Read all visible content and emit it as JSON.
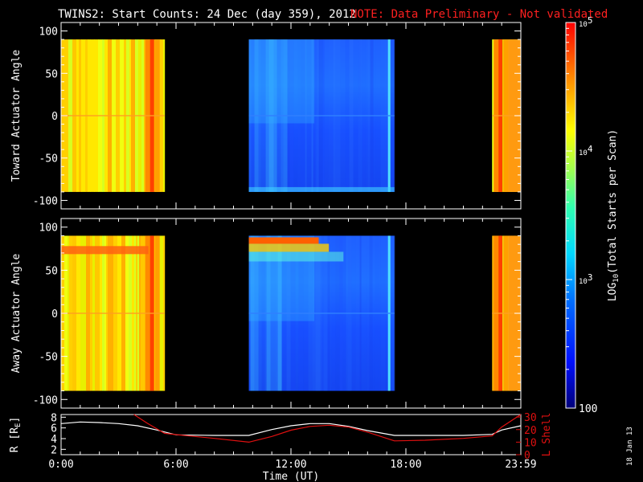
{
  "title": "TWINS2: Start Counts: 24 Dec (day 359), 2012",
  "note": "NOTE: Data Preliminary - Not validated",
  "date_stamp": "18 Jan 13",
  "colorbar": {
    "label_prefix": "LOG",
    "label_sub": "10",
    "label_suffix": "(Total Starts per Scan)",
    "tick_labels": [
      "10",
      "10",
      "10",
      "100"
    ],
    "tick_exponents": [
      "5",
      "4",
      "3",
      ""
    ],
    "range": [
      100,
      100000
    ],
    "scale": "log"
  },
  "colors": {
    "title": "#ffffff",
    "note": "#ff2020",
    "axis": "#ffffff",
    "lshell": "#e01010",
    "radius": "#ffffff"
  },
  "chart_data": [
    {
      "type": "heatmap",
      "ylabel": "Toward Actuator Angle",
      "ylim": [
        -110,
        110
      ],
      "yticks": [
        100,
        50,
        0,
        -50,
        -100
      ],
      "data_ylim": [
        -90,
        90
      ],
      "xlim": [
        0,
        24
      ],
      "data_segments": [
        {
          "start_hr": 0.0,
          "end_hr": 5.4,
          "level": "high"
        },
        {
          "start_hr": 9.8,
          "end_hr": 17.4,
          "level": "low"
        },
        {
          "start_hr": 22.5,
          "end_hr": 24.0,
          "level": "high"
        }
      ]
    },
    {
      "type": "heatmap",
      "ylabel": "Away Actuator Angle",
      "ylim": [
        -110,
        110
      ],
      "yticks": [
        100,
        50,
        0,
        -50,
        -100
      ],
      "data_ylim": [
        -90,
        90
      ],
      "xlim": [
        0,
        24
      ],
      "data_segments": [
        {
          "start_hr": 0.0,
          "end_hr": 5.4,
          "level": "high"
        },
        {
          "start_hr": 9.8,
          "end_hr": 17.4,
          "level": "low"
        },
        {
          "start_hr": 22.5,
          "end_hr": 24.0,
          "level": "high"
        }
      ]
    },
    {
      "type": "line",
      "xlabel": "Time (UT)",
      "xtick_labels": [
        "0:00",
        "6:00",
        "12:00",
        "18:00",
        "23:59"
      ],
      "xticks": [
        0,
        6,
        12,
        18,
        24
      ],
      "xlim": [
        0,
        24
      ],
      "y_left_label": "R [R",
      "y_left_sub": "E",
      "y_left_suffix": "]",
      "y_left_ticks": [
        2,
        4,
        6,
        8
      ],
      "y_left_lim": [
        1,
        8.5
      ],
      "y_right_label": "L Shell",
      "y_right_ticks": [
        0,
        10,
        20,
        30
      ],
      "y_right_lim": [
        0,
        32
      ],
      "series": [
        {
          "axis": "left",
          "x": [
            0,
            1,
            2,
            3,
            4,
            5,
            6,
            8,
            9.8,
            11,
            12,
            13,
            14,
            15,
            16,
            17.4,
            19,
            21,
            22.5,
            23,
            24
          ],
          "y": [
            6.8,
            7.1,
            7.0,
            6.8,
            6.4,
            5.6,
            4.7,
            4.6,
            4.6,
            5.7,
            6.4,
            6.8,
            6.8,
            6.3,
            5.5,
            4.6,
            4.6,
            4.6,
            4.8,
            5.6,
            6.4
          ]
        },
        {
          "axis": "right",
          "x": [
            3.8,
            4.5,
            5.4,
            6,
            8,
            9.8,
            11,
            12,
            13,
            14,
            15,
            16,
            17.4,
            19,
            21,
            22.5,
            23,
            24
          ],
          "y": [
            32,
            25,
            17,
            16,
            13,
            10,
            14.5,
            19.5,
            22.5,
            23.5,
            22,
            18,
            11,
            11.5,
            13,
            15,
            22,
            32
          ]
        }
      ]
    }
  ]
}
